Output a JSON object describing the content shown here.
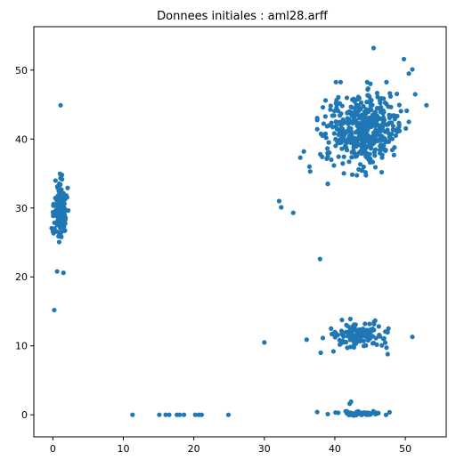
{
  "chart_data": {
    "type": "scatter",
    "title": "Donnees initiales : aml28.arff",
    "xlabel": "",
    "ylabel": "",
    "xlim": [
      -2.7,
      55.8
    ],
    "ylim": [
      -3.2,
      56.3
    ],
    "xticks": [
      0,
      10,
      20,
      30,
      40,
      50
    ],
    "yticks": [
      0,
      10,
      20,
      30,
      40,
      50
    ],
    "grid": false,
    "marker_color": "#1f77b4",
    "clusters": [
      {
        "name": "",
        "center": [
          44.0,
          41.5
        ],
        "spread": [
          2.5,
          2.6
        ],
        "count": 480
      },
      {
        "name": "",
        "center": [
          1.0,
          29.5
        ],
        "spread": [
          0.45,
          2.1
        ],
        "count": 130
      },
      {
        "name": "",
        "center": [
          43.5,
          11.5
        ],
        "spread": [
          2.0,
          0.9
        ],
        "count": 110
      },
      {
        "name": "",
        "center": [
          44.0,
          0.2
        ],
        "spread": [
          1.5,
          0.12
        ],
        "count": 70
      }
    ],
    "outliers": [
      [
        1.1,
        44.9
      ],
      [
        0.2,
        15.2
      ],
      [
        0.6,
        20.8
      ],
      [
        1.5,
        20.6
      ],
      [
        32.1,
        31.0
      ],
      [
        32.4,
        30.1
      ],
      [
        34.1,
        29.3
      ],
      [
        37.9,
        22.6
      ],
      [
        35.1,
        37.3
      ],
      [
        35.6,
        38.2
      ],
      [
        36.4,
        36.0
      ],
      [
        36.5,
        35.3
      ],
      [
        39.0,
        33.5
      ],
      [
        45.5,
        53.2
      ],
      [
        49.8,
        51.6
      ],
      [
        50.5,
        49.5
      ],
      [
        51.0,
        50.1
      ],
      [
        53.0,
        44.9
      ],
      [
        51.4,
        46.5
      ],
      [
        39.5,
        37.0
      ],
      [
        30.0,
        10.5
      ],
      [
        36.0,
        10.9
      ],
      [
        38.0,
        9.0
      ],
      [
        51.0,
        11.3
      ],
      [
        47.5,
        8.8
      ],
      [
        42.2,
        13.9
      ],
      [
        40.0,
        12.0
      ],
      [
        39.8,
        9.2
      ],
      [
        37.5,
        0.4
      ],
      [
        39.0,
        0.1
      ],
      [
        42.1,
        1.6
      ],
      [
        42.3,
        1.9
      ],
      [
        11.3,
        0.0
      ],
      [
        15.1,
        0.0
      ],
      [
        16.0,
        0.0
      ],
      [
        16.5,
        0.0
      ],
      [
        17.6,
        0.0
      ],
      [
        18.0,
        0.0
      ],
      [
        18.6,
        0.0
      ],
      [
        20.2,
        0.0
      ],
      [
        20.7,
        0.0
      ],
      [
        21.1,
        0.0
      ],
      [
        24.9,
        0.0
      ]
    ]
  }
}
